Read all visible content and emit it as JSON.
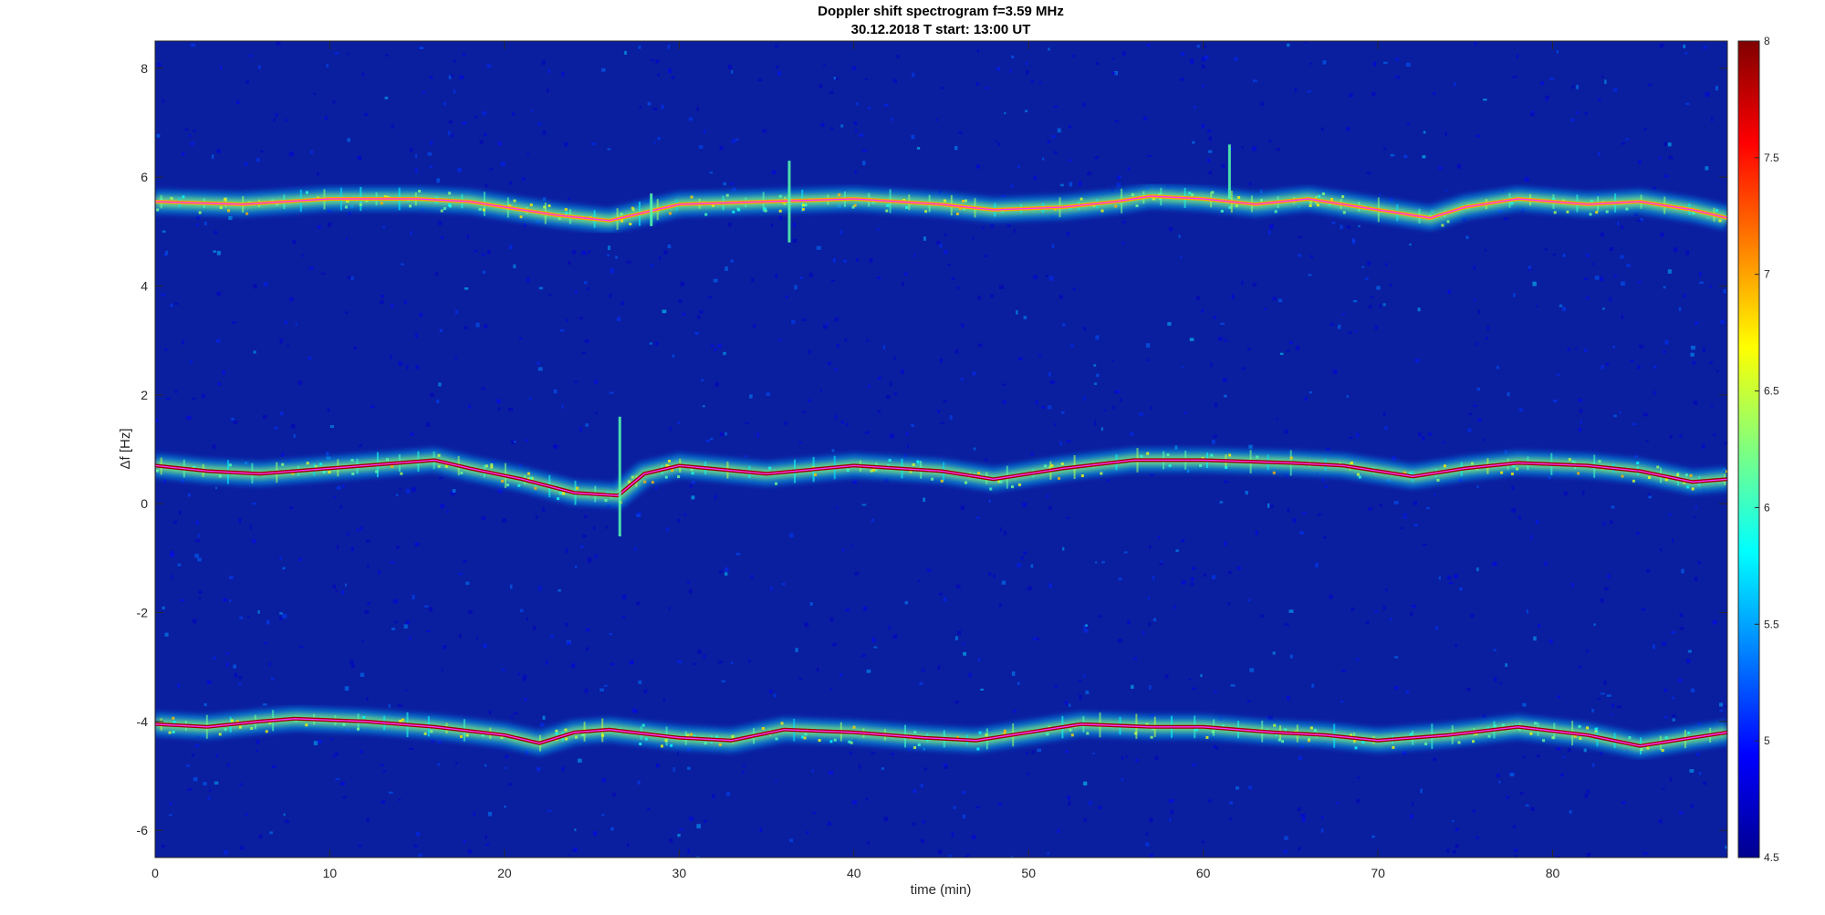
{
  "chart_data": {
    "type": "heatmap",
    "title": "Doppler shift spectrogram f=3.59 MHz",
    "subtitle": "30.12.2018   T start: 13:00 UT",
    "xlabel": "time (min)",
    "ylabel": "Δf [Hz]",
    "xlim": [
      0,
      90
    ],
    "ylim": [
      -6.5,
      8.5
    ],
    "xticks": [
      0,
      10,
      20,
      30,
      40,
      50,
      60,
      70,
      80
    ],
    "xtick_labels": [
      "0",
      "10",
      "20",
      "30",
      "40",
      "50",
      "60",
      "70",
      "80"
    ],
    "yticks": [
      8,
      6,
      4,
      2,
      0,
      -2,
      -4,
      -6
    ],
    "ytick_labels": [
      "8",
      "6",
      "4",
      "2",
      "0",
      "-2",
      "-4",
      "-6"
    ],
    "colormap": "jet",
    "clim": [
      4.5,
      8
    ],
    "colorbar_ticks": [
      8,
      7.5,
      7,
      6.5,
      6,
      5.5,
      5,
      4.5
    ],
    "colorbar_tick_labels": [
      "8",
      "7.5",
      "7",
      "6.5",
      "6",
      "5.5",
      "5",
      "4.5"
    ],
    "background_value": 4.7,
    "traces": [
      {
        "label": "upper",
        "peak_value": 7.0,
        "overlay_line_color": "#ff33ff",
        "x": [
          0,
          5,
          10,
          15,
          18,
          20,
          23,
          26,
          28,
          30,
          35,
          40,
          45,
          48,
          52,
          55,
          57,
          60,
          63,
          66,
          70,
          73,
          75,
          78,
          82,
          85,
          88,
          90
        ],
        "y": [
          5.55,
          5.5,
          5.6,
          5.6,
          5.55,
          5.45,
          5.3,
          5.2,
          5.35,
          5.5,
          5.55,
          5.6,
          5.5,
          5.4,
          5.45,
          5.55,
          5.65,
          5.6,
          5.5,
          5.6,
          5.4,
          5.25,
          5.45,
          5.6,
          5.5,
          5.55,
          5.4,
          5.25
        ]
      },
      {
        "label": "middle",
        "peak_value": 7.9,
        "overlay_line_color": "#ff33ff",
        "x": [
          0,
          3,
          6,
          10,
          14,
          16,
          18,
          21,
          24,
          26.5,
          28,
          30,
          35,
          40,
          45,
          48,
          52,
          56,
          60,
          65,
          68,
          70,
          72,
          75,
          78,
          82,
          85,
          88,
          90
        ],
        "y": [
          0.7,
          0.6,
          0.55,
          0.65,
          0.75,
          0.8,
          0.65,
          0.45,
          0.2,
          0.15,
          0.55,
          0.7,
          0.55,
          0.7,
          0.6,
          0.45,
          0.65,
          0.8,
          0.8,
          0.75,
          0.7,
          0.6,
          0.5,
          0.65,
          0.75,
          0.7,
          0.6,
          0.4,
          0.45
        ]
      },
      {
        "label": "lower",
        "peak_value": 7.9,
        "overlay_line_color": "#ff33ff",
        "x": [
          0,
          3,
          6,
          8,
          12,
          16,
          20,
          22,
          24,
          26,
          30,
          33,
          36,
          40,
          44,
          47,
          50,
          53,
          57,
          60,
          64,
          67,
          70,
          74,
          78,
          82,
          85,
          88,
          90
        ],
        "y": [
          -4.05,
          -4.1,
          -4.0,
          -3.95,
          -4.0,
          -4.1,
          -4.25,
          -4.4,
          -4.2,
          -4.15,
          -4.3,
          -4.35,
          -4.15,
          -4.2,
          -4.3,
          -4.35,
          -4.2,
          -4.05,
          -4.1,
          -4.1,
          -4.2,
          -4.25,
          -4.35,
          -4.25,
          -4.1,
          -4.25,
          -4.45,
          -4.3,
          -4.2
        ]
      }
    ],
    "spikes": [
      {
        "x": 26.6,
        "y_from": -0.6,
        "y_to": 1.6
      },
      {
        "x": 36.3,
        "y_from": 4.8,
        "y_to": 6.3
      },
      {
        "x": 61.5,
        "y_from": 5.6,
        "y_to": 6.6
      },
      {
        "x": 28.4,
        "y_from": 5.1,
        "y_to": 5.7
      }
    ]
  }
}
